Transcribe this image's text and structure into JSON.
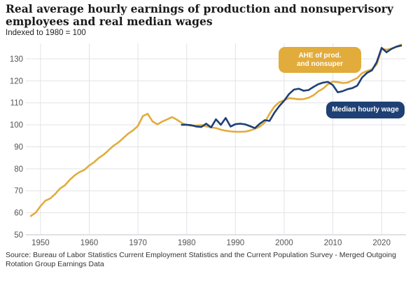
{
  "header": {
    "title": "Real average hourly earnings of production and nonsupervisory employees and real median wages",
    "subtitle": "Indexed to 1980 = 100"
  },
  "source": "Source: Bureau of Labor Statistics Current Employment Statistics and the Current Population Survey - Merged Outgoing Rotation Group Earnings Data",
  "colors": {
    "ahe": "#e2ac3c",
    "median": "#1e4074",
    "grid": "#e1e3e6",
    "axis": "#bfc3c8",
    "tick": "#555555"
  },
  "chart_data": {
    "type": "line",
    "xlim": [
      1947,
      2025
    ],
    "ylim": [
      50,
      137
    ],
    "yticks": [
      50,
      60,
      70,
      80,
      90,
      100,
      110,
      120,
      130
    ],
    "xticks": [
      1950,
      1960,
      1970,
      1980,
      1990,
      2000,
      2010,
      2020
    ],
    "grid": true,
    "series": [
      {
        "name": "AHE of prod. and nonsuper",
        "color": "#e2ac3c",
        "x": [
          1948,
          1949,
          1950,
          1951,
          1952,
          1953,
          1954,
          1955,
          1956,
          1957,
          1958,
          1959,
          1960,
          1961,
          1962,
          1963,
          1964,
          1965,
          1966,
          1967,
          1968,
          1969,
          1970,
          1971,
          1972,
          1973,
          1974,
          1975,
          1976,
          1977,
          1978,
          1979,
          1980,
          1981,
          1982,
          1983,
          1984,
          1985,
          1986,
          1987,
          1988,
          1989,
          1990,
          1991,
          1992,
          1993,
          1994,
          1995,
          1996,
          1997,
          1998,
          1999,
          2000,
          2001,
          2002,
          2003,
          2004,
          2005,
          2006,
          2007,
          2008,
          2009,
          2010,
          2011,
          2012,
          2013,
          2014,
          2015,
          2016,
          2017,
          2018,
          2019,
          2020,
          2021,
          2022,
          2023,
          2024
        ],
        "y": [
          58.5,
          60,
          63,
          65.5,
          66.5,
          68.5,
          71,
          72.5,
          75,
          77,
          78.5,
          79.5,
          81.5,
          83,
          85,
          86.5,
          88.5,
          90.5,
          92,
          94,
          96,
          97.5,
          99.5,
          104,
          105,
          101.5,
          100.2,
          101.5,
          102.5,
          103.5,
          102.3,
          100.8,
          100,
          99.6,
          99.7,
          99.9,
          99.3,
          98.9,
          98.5,
          97.8,
          97.3,
          97,
          96.8,
          96.8,
          96.9,
          97.4,
          98.2,
          99.2,
          101,
          105,
          108.3,
          110.3,
          111.2,
          112.1,
          111.9,
          111.6,
          111.7,
          112.3,
          113.4,
          115.2,
          116.5,
          118.5,
          119.7,
          119.4,
          119,
          119.2,
          120.2,
          121.3,
          123.5,
          124.5,
          125.2,
          127.5,
          134.5,
          134.2,
          134.6,
          135.5,
          136.5
        ]
      },
      {
        "name": "Median hourly wage",
        "color": "#1e4074",
        "x": [
          1979,
          1980,
          1981,
          1982,
          1983,
          1984,
          1985,
          1986,
          1987,
          1988,
          1989,
          1990,
          1991,
          1992,
          1993,
          1994,
          1995,
          1996,
          1997,
          1998,
          1999,
          2000,
          2001,
          2002,
          2003,
          2004,
          2005,
          2006,
          2007,
          2008,
          2009,
          2010,
          2011,
          2012,
          2013,
          2014,
          2015,
          2016,
          2017,
          2018,
          2019,
          2020,
          2021,
          2022,
          2023,
          2024
        ],
        "y": [
          100,
          100,
          99.8,
          99.2,
          99,
          100.5,
          98.8,
          102.5,
          100,
          103.1,
          99.2,
          100.3,
          100.5,
          100.2,
          99.4,
          98.5,
          100.5,
          102.1,
          101.8,
          105.5,
          108.5,
          111,
          114,
          116,
          116.4,
          115.5,
          115.8,
          117.2,
          118.5,
          119.2,
          119.5,
          118,
          114.8,
          115.3,
          116.2,
          116.7,
          117.8,
          121.5,
          123.6,
          124.8,
          128.5,
          135,
          133,
          134.5,
          135.5,
          136
        ]
      }
    ],
    "annotations": [
      "AHE of prod.\nand nonsuper",
      "Median hourly wage"
    ]
  }
}
